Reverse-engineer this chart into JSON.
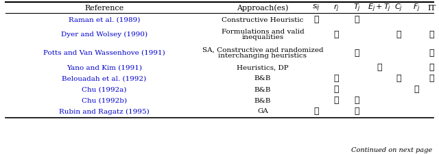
{
  "title_row": [
    "Reference",
    "Approach(es)",
    "$s_{ij}$",
    "$r_j$",
    "$T_j$",
    "$E_j+T_j$",
    "$C_j$",
    "$F_j$",
    "IT"
  ],
  "rows": [
    {
      "ref": "Raman et al. (1989)",
      "approach_lines": [
        "Constructive Heuristic"
      ],
      "sij": 1,
      "rj": 0,
      "Tj": 1,
      "EjTj": 0,
      "Cj": 0,
      "Fj": 0,
      "IT": 0
    },
    {
      "ref": "Dyer and Wolsey (1990)",
      "approach_lines": [
        "Formulations and valid",
        "inequalities"
      ],
      "sij": 0,
      "rj": 1,
      "Tj": 0,
      "EjTj": 0,
      "Cj": 1,
      "Fj": 0,
      "IT": 1
    },
    {
      "ref": "Potts and Van Wassenhove (1991)",
      "approach_lines": [
        "SA, Constructive and randomized",
        "interchanging heuristics"
      ],
      "sij": 0,
      "rj": 0,
      "Tj": 1,
      "EjTj": 0,
      "Cj": 0,
      "Fj": 0,
      "IT": 1
    },
    {
      "ref": "Yano and Kim (1991)",
      "approach_lines": [
        "Heuristics, DP"
      ],
      "sij": 0,
      "rj": 0,
      "Tj": 0,
      "EjTj": 1,
      "Cj": 0,
      "Fj": 0,
      "IT": 1
    },
    {
      "ref": "Belouadah et al. (1992)",
      "approach_lines": [
        "B&B"
      ],
      "sij": 0,
      "rj": 1,
      "Tj": 0,
      "EjTj": 0,
      "Cj": 1,
      "Fj": 0,
      "IT": 1
    },
    {
      "ref": "Chu (1992a)",
      "approach_lines": [
        "B&B"
      ],
      "sij": 0,
      "rj": 1,
      "Tj": 0,
      "EjTj": 0,
      "Cj": 0,
      "Fj": 1,
      "IT": 0
    },
    {
      "ref": "Chu (1992b)",
      "approach_lines": [
        "B&B"
      ],
      "sij": 0,
      "rj": 1,
      "Tj": 1,
      "EjTj": 0,
      "Cj": 0,
      "Fj": 0,
      "IT": 0
    },
    {
      "ref": "Rubin and Ragatz (1995)",
      "approach_lines": [
        "GA"
      ],
      "sij": 1,
      "rj": 0,
      "Tj": 1,
      "EjTj": 0,
      "Cj": 0,
      "Fj": 0,
      "IT": 0
    }
  ],
  "ref_color": "#0000cc",
  "header_color": "#000000",
  "check_color": "#000000",
  "bg_color": "#ffffff",
  "continued_text": "Continued on next page",
  "fig_width": 6.4,
  "fig_height": 2.26
}
